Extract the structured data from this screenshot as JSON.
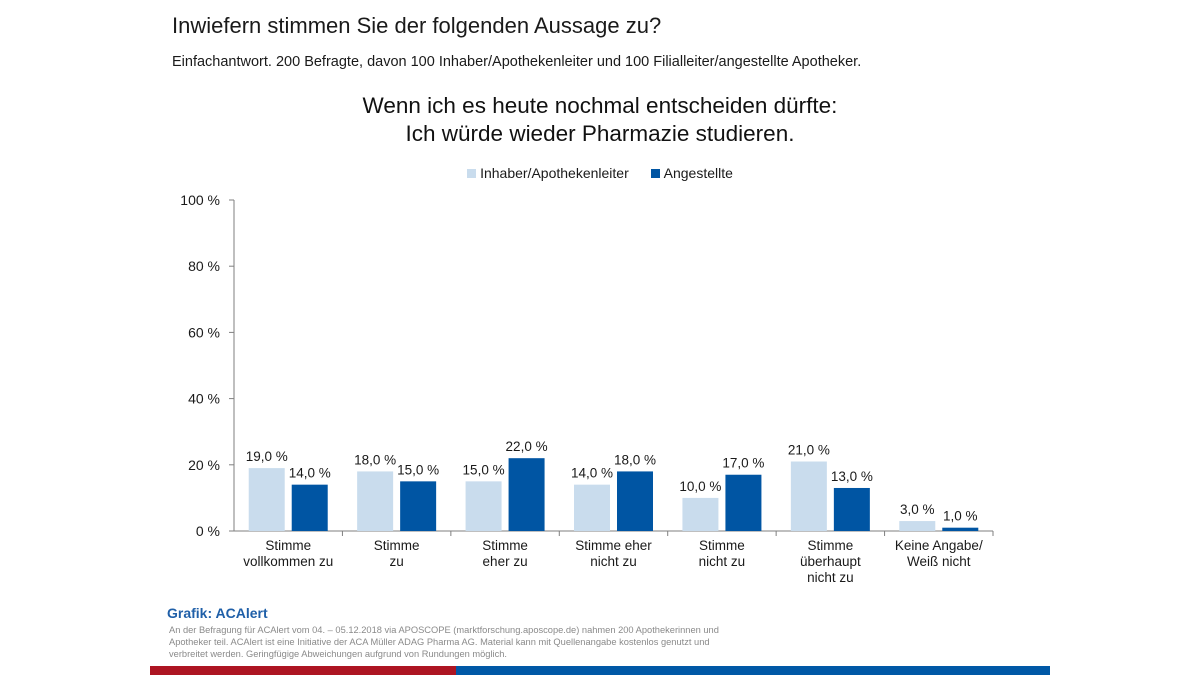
{
  "header": {
    "title": "Inwiefern stimmen Sie der folgenden Aussage zu?",
    "subtitle": "Einfachantwort. 200 Befragte, davon 100 Inhaber/Apothekenleiter und 100 Filialleiter/angestellte Apotheker."
  },
  "colors": {
    "series_light": "#c9dced",
    "series_dark": "#0055a3",
    "accent_red": "#ad1522",
    "accent_blue": "#0058a6",
    "axis": "#7f7f7f"
  },
  "chart_data": {
    "type": "bar",
    "title_lines": [
      "Wenn ich es heute nochmal entscheiden dürfte:",
      "Ich würde wieder Pharmazie studieren."
    ],
    "categories": [
      [
        "Stimme",
        "vollkommen zu"
      ],
      [
        "Stimme",
        "zu"
      ],
      [
        "Stimme",
        "eher zu"
      ],
      [
        "Stimme eher",
        "nicht zu"
      ],
      [
        "Stimme",
        "nicht zu"
      ],
      [
        "Stimme",
        "überhaupt",
        "nicht zu"
      ],
      [
        "Keine Angabe/",
        "Weiß nicht"
      ]
    ],
    "series": [
      {
        "name": "Inhaber/Apothekenleiter",
        "values": [
          19.0,
          18.0,
          15.0,
          14.0,
          10.0,
          21.0,
          3.0
        ],
        "labels": [
          "19,0 %",
          "18,0 %",
          "15,0 %",
          "14,0 %",
          "10,0 %",
          "21,0 %",
          "3,0 %"
        ]
      },
      {
        "name": "Angestellte",
        "values": [
          14.0,
          15.0,
          22.0,
          18.0,
          17.0,
          13.0,
          1.0
        ],
        "labels": [
          "14,0 %",
          "15,0 %",
          "22,0 %",
          "18,0 %",
          "17,0 %",
          "13,0 %",
          "1,0 %"
        ]
      }
    ],
    "xlabel": "",
    "ylabel": "",
    "ylim": [
      0,
      100
    ],
    "yticks": [
      0,
      20,
      40,
      60,
      80,
      100
    ],
    "ytick_labels": [
      "0 %",
      "20 %",
      "40 %",
      "60 %",
      "80 %",
      "100 %"
    ],
    "grid": false,
    "legend_position": "top-center"
  },
  "footer": {
    "source": "Grafik: ACAlert",
    "note": "An der Befragung für ACAlert vom 04. – 05.12.2018 via APOSCOPE (marktforschung.aposcope.de) nahmen 200 Apothekerinnen und Apotheker teil. ACAlert ist eine Initiative der ACA Müller ADAG Pharma AG. Material kann mit Quellenangabe kostenlos genutzt und verbreitet werden. Geringfügige Abweichungen aufgrund von Rundungen möglich."
  }
}
